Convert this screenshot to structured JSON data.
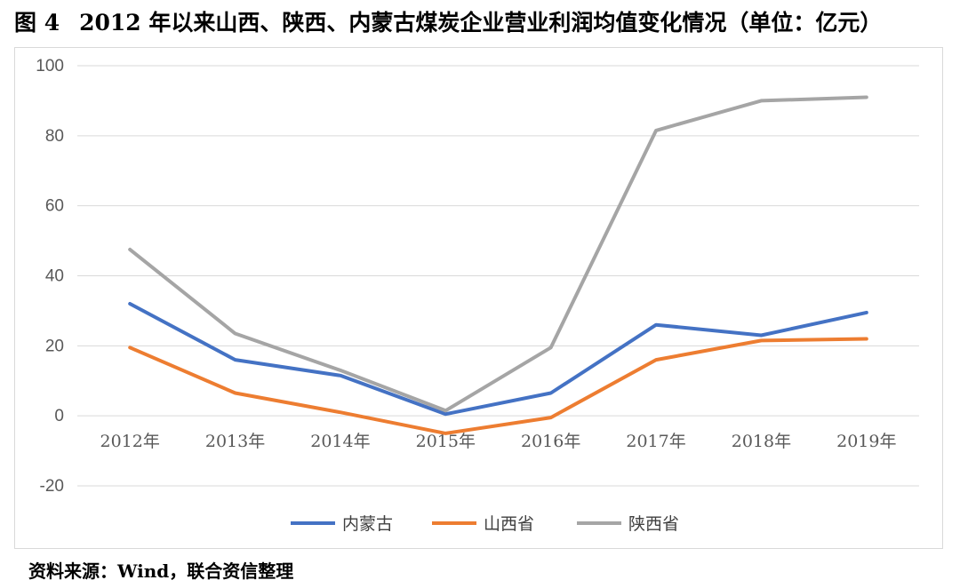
{
  "figure": {
    "number": "图 4",
    "title": "2012 年以来山西、陕西、内蒙古煤炭企业营业利润均值变化情况（单位：亿元）"
  },
  "source": "资料来源：Wind，联合资信整理",
  "chart_data": {
    "type": "line",
    "title": "",
    "xlabel": "",
    "ylabel": "",
    "categories": [
      "2012年",
      "2013年",
      "2014年",
      "2015年",
      "2016年",
      "2017年",
      "2018年",
      "2019年"
    ],
    "ylim": [
      -20,
      100
    ],
    "yticks": [
      100,
      80,
      60,
      40,
      20,
      0,
      -20
    ],
    "grid": true,
    "legend_position": "bottom",
    "series": [
      {
        "name": "内蒙古",
        "color": "#4472C4",
        "values": [
          32,
          16,
          11.5,
          0.5,
          6.5,
          26,
          23,
          29.5
        ]
      },
      {
        "name": "山西省",
        "color": "#ED7D31",
        "values": [
          19.5,
          6.5,
          1,
          -5,
          -0.5,
          16,
          21.5,
          22
        ]
      },
      {
        "name": "陕西省",
        "color": "#A5A5A5",
        "values": [
          47.5,
          23.5,
          13,
          1.5,
          19.5,
          81.5,
          90,
          91
        ]
      }
    ]
  }
}
